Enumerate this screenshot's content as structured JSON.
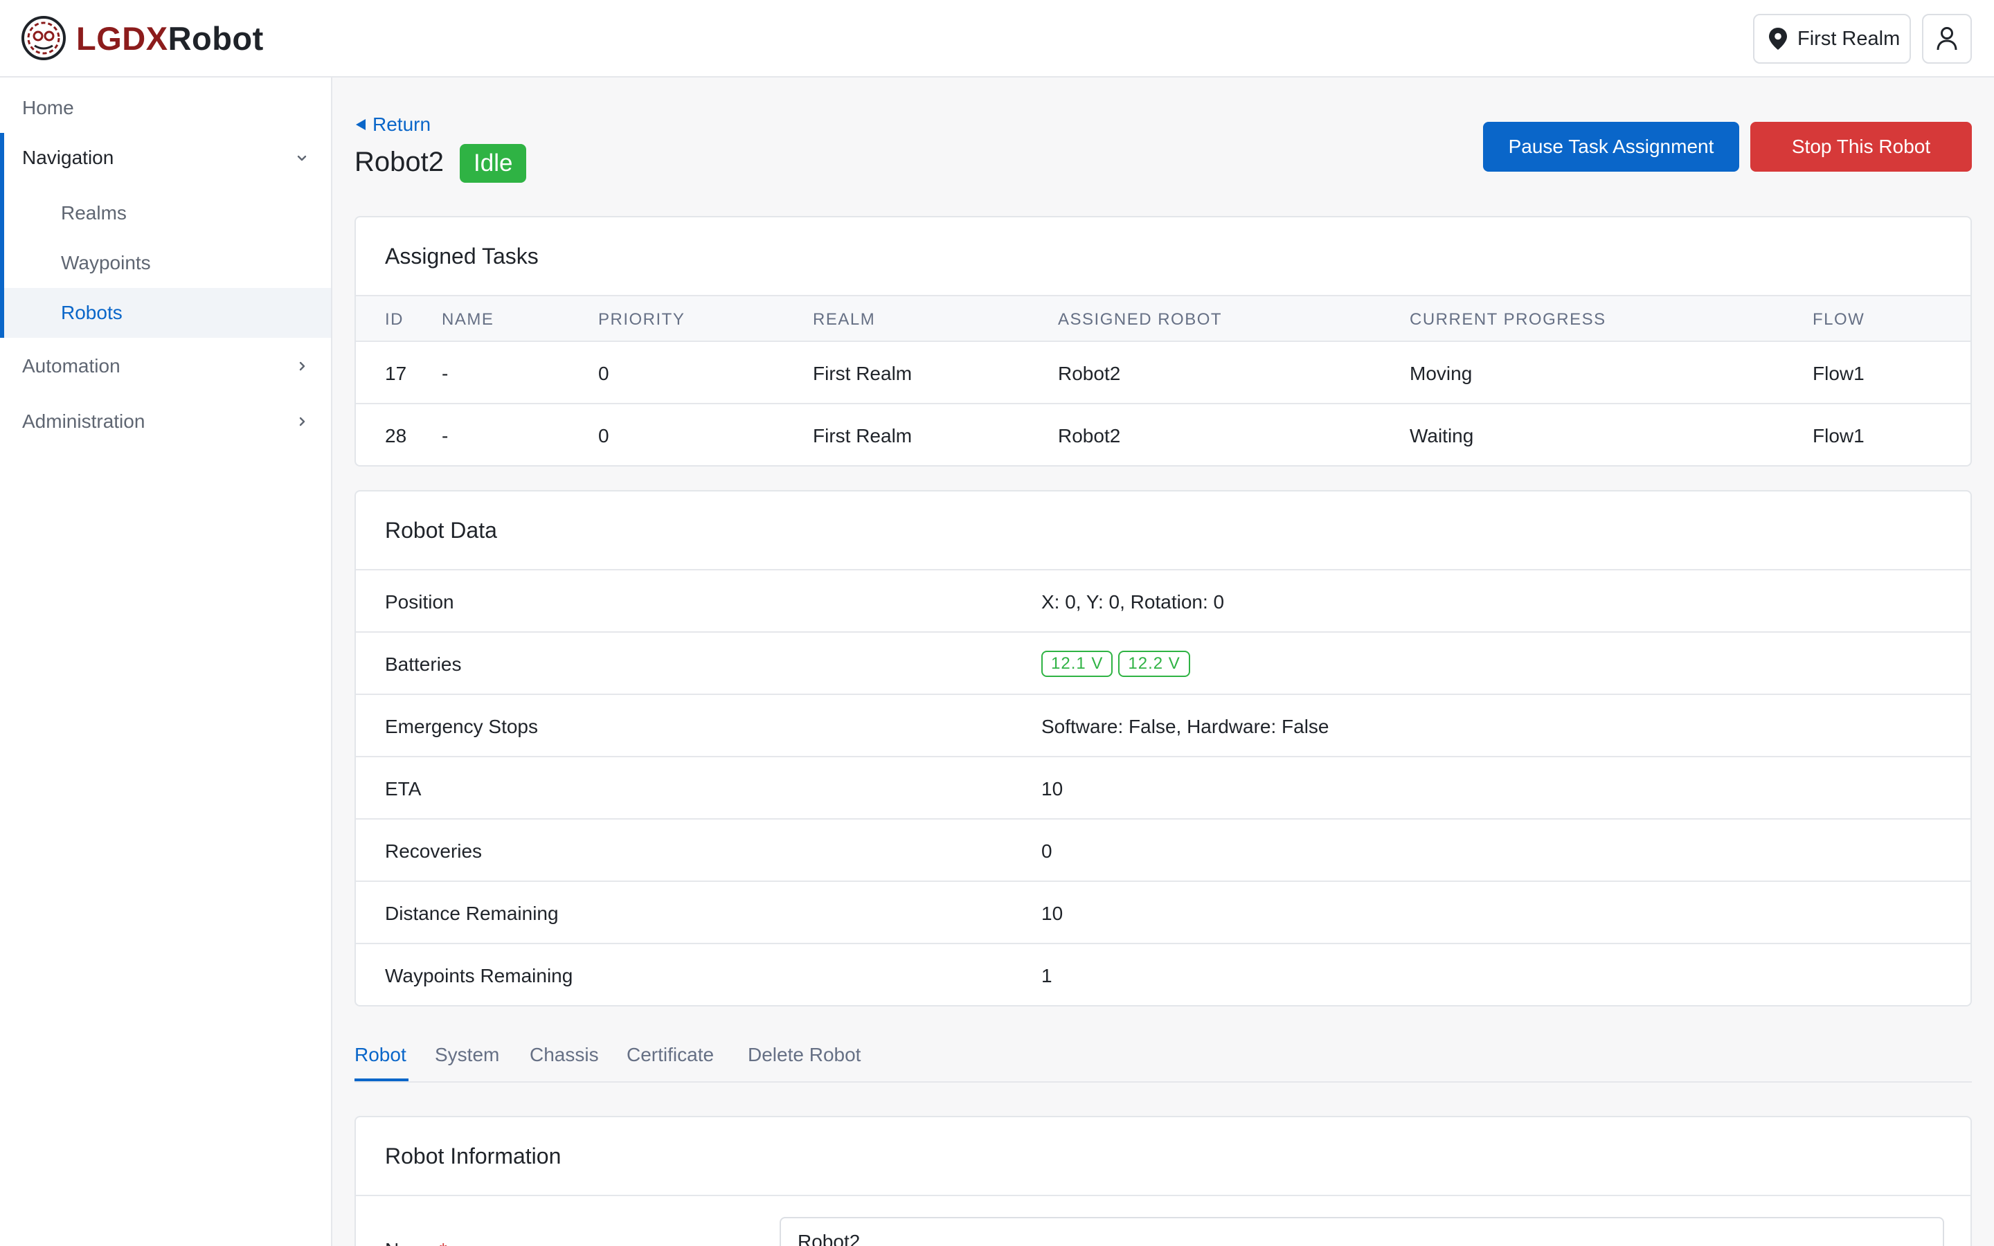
{
  "brand": {
    "part1": "LGDX",
    "part2": "Robot"
  },
  "header": {
    "realm_label": "First Realm"
  },
  "sidebar": {
    "home": "Home",
    "navigation": "Navigation",
    "realms": "Realms",
    "waypoints": "Waypoints",
    "robots": "Robots",
    "automation": "Automation",
    "administration": "Administration"
  },
  "page": {
    "return_label": "Return",
    "title": "Robot2",
    "status": "Idle",
    "pause_button": "Pause Task Assignment",
    "stop_button": "Stop This Robot"
  },
  "tasks": {
    "title": "Assigned Tasks",
    "columns": [
      "ID",
      "NAME",
      "PRIORITY",
      "REALM",
      "ASSIGNED ROBOT",
      "CURRENT PROGRESS",
      "FLOW"
    ],
    "rows": [
      [
        "17",
        "-",
        "0",
        "First Realm",
        "Robot2",
        "Moving",
        "Flow1"
      ],
      [
        "28",
        "-",
        "0",
        "First Realm",
        "Robot2",
        "Waiting",
        "Flow1"
      ]
    ]
  },
  "robot_data": {
    "title": "Robot Data",
    "position_label": "Position",
    "position_value": "X: 0, Y: 0, Rotation: 0",
    "batteries_label": "Batteries",
    "batteries": [
      "12.1 V",
      "12.2 V"
    ],
    "estop_label": "Emergency Stops",
    "estop_value": "Software: False, Hardware: False",
    "eta_label": "ETA",
    "eta_value": "10",
    "recoveries_label": "Recoveries",
    "recoveries_value": "0",
    "distance_label": "Distance Remaining",
    "distance_value": "10",
    "waypoints_label": "Waypoints Remaining",
    "waypoints_value": "1"
  },
  "tabs": [
    "Robot",
    "System",
    "Chassis",
    "Certificate",
    "Delete Robot"
  ],
  "robot_info": {
    "title": "Robot Information",
    "name_label": "Name",
    "name_required": "*",
    "name_value": "Robot2"
  },
  "colors": {
    "primary": "#0a66c9",
    "danger": "#d63939",
    "success": "#2fb344",
    "brand_red": "#8c1c1c"
  }
}
